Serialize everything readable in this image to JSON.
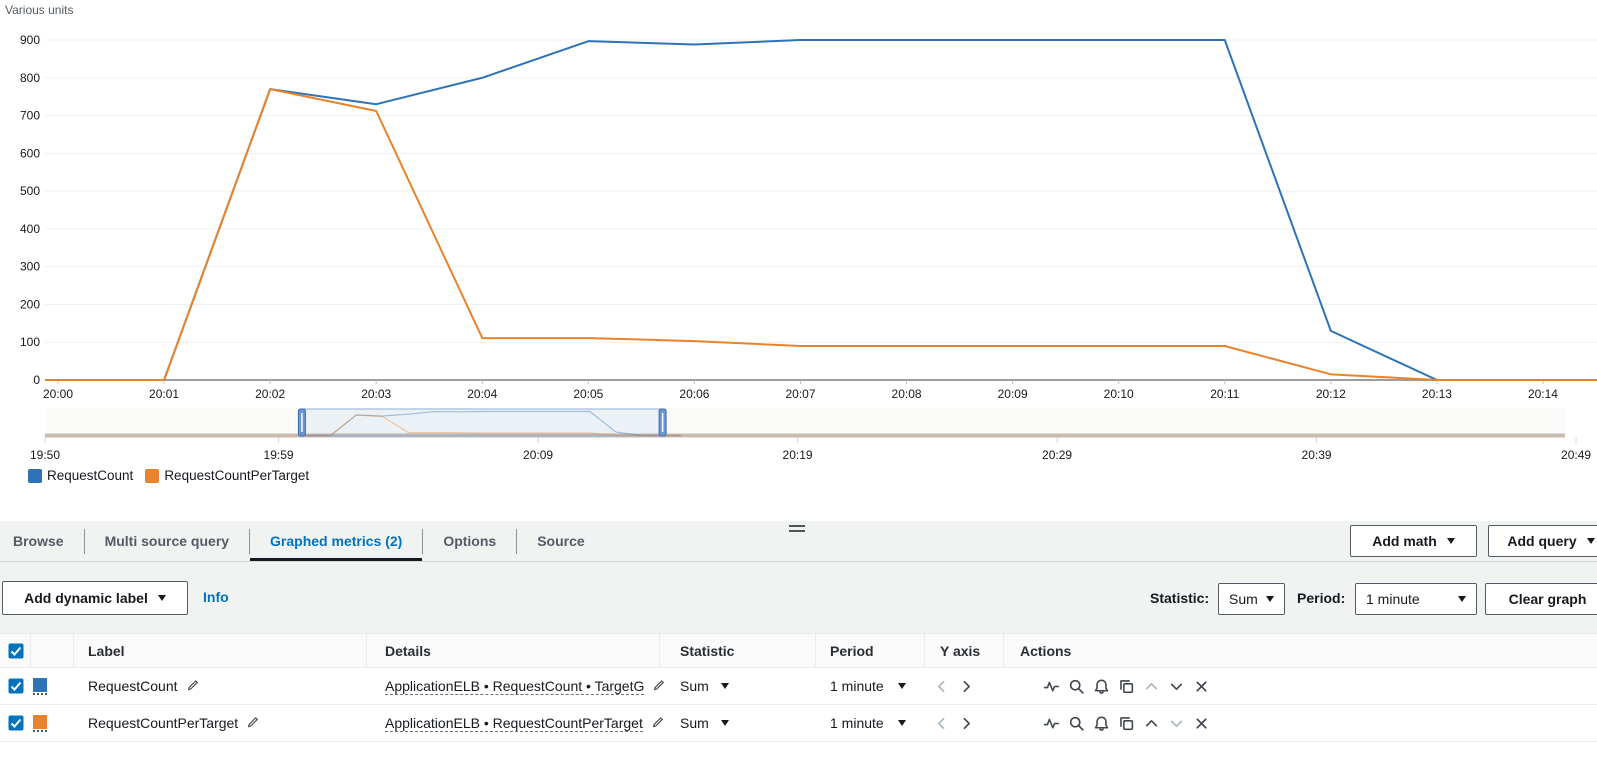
{
  "colors": {
    "accent": "#0073bb",
    "active_tab_underline": "#16191f",
    "series_blue": "#2e73b8",
    "series_orange": "#e8832c"
  },
  "chart": {
    "units_label": "Various units",
    "legend": [
      {
        "label": "RequestCount",
        "color": "#2e73b8"
      },
      {
        "label": "RequestCountPerTarget",
        "color": "#e8832c"
      }
    ]
  },
  "chart_data": {
    "type": "line",
    "title": "",
    "ylabel": "Various units",
    "xlabel": "",
    "ylim": [
      0,
      900
    ],
    "y_ticks": [
      0,
      100,
      200,
      300,
      400,
      500,
      600,
      700,
      800,
      900
    ],
    "x_tick_labels": [
      "20:00",
      "20:01",
      "20:02",
      "20:03",
      "20:04",
      "20:05",
      "20:06",
      "20:07",
      "20:08",
      "20:09",
      "20:10",
      "20:11",
      "20:12",
      "20:13",
      "20:14"
    ],
    "grid": true,
    "legend_position": "bottom-left",
    "series": [
      {
        "name": "RequestCount",
        "color": "#2e73b8",
        "x": [
          -0.12,
          0,
          1,
          2,
          3,
          4,
          5,
          6,
          7,
          8,
          9,
          10,
          11,
          12,
          13,
          14,
          14.52
        ],
        "values": [
          0,
          0,
          0,
          770,
          730,
          800,
          897,
          888,
          900,
          900,
          900,
          900,
          900,
          130,
          0,
          0,
          0
        ]
      },
      {
        "name": "RequestCountPerTarget",
        "color": "#e8832c",
        "x": [
          -0.12,
          0,
          1,
          2,
          3,
          4,
          5,
          6,
          7,
          8,
          9,
          10,
          11,
          12,
          13,
          14,
          14.52
        ],
        "values": [
          0,
          0,
          0,
          770,
          712,
          111,
          111,
          103,
          90,
          90,
          90,
          90,
          90,
          15,
          0,
          0,
          0
        ]
      }
    ],
    "timeline": {
      "tick_labels": [
        "19:50",
        "19:59",
        "20:09",
        "20:19",
        "20:29",
        "20:39",
        "20:49"
      ],
      "tick_minutes": [
        0,
        9,
        19,
        29,
        39,
        49,
        59
      ],
      "selection_minutes": [
        9.9,
        23.8
      ]
    }
  },
  "tabs": [
    {
      "label": "Browse",
      "active": false
    },
    {
      "label": "Multi source query",
      "active": false
    },
    {
      "label": "Graphed metrics (2)",
      "active": true
    },
    {
      "label": "Options",
      "active": false
    },
    {
      "label": "Source",
      "active": false
    }
  ],
  "toolbar": {
    "add_math_label": "Add math",
    "add_query_label": "Add query"
  },
  "controls": {
    "add_dynamic_label": "Add dynamic label",
    "info_label": "Info",
    "statistic_label": "Statistic:",
    "statistic_value": "Sum",
    "period_label": "Period:",
    "period_value": "1 minute",
    "clear_graph_label": "Clear graph"
  },
  "table": {
    "headers": {
      "label": "Label",
      "details": "Details",
      "statistic": "Statistic",
      "period": "Period",
      "yaxis": "Y axis",
      "actions": "Actions"
    },
    "rows": [
      {
        "checked": true,
        "color": "#2e73b8",
        "label": "RequestCount",
        "details": "ApplicationELB • RequestCount • TargetG",
        "statistic": "Sum",
        "period": "1 minute"
      },
      {
        "checked": true,
        "color": "#e8832c",
        "label": "RequestCountPerTarget",
        "details": "ApplicationELB • RequestCountPerTarget",
        "statistic": "Sum",
        "period": "1 minute"
      }
    ]
  },
  "icons": {
    "row_actions": [
      "pulse",
      "zoom-in",
      "alarm-bell",
      "duplicate",
      "move-up",
      "move-down",
      "remove"
    ],
    "yaxis_toggles": [
      "chevron-left",
      "chevron-right"
    ],
    "edit": "pencil",
    "dropdown": "caret-down"
  }
}
